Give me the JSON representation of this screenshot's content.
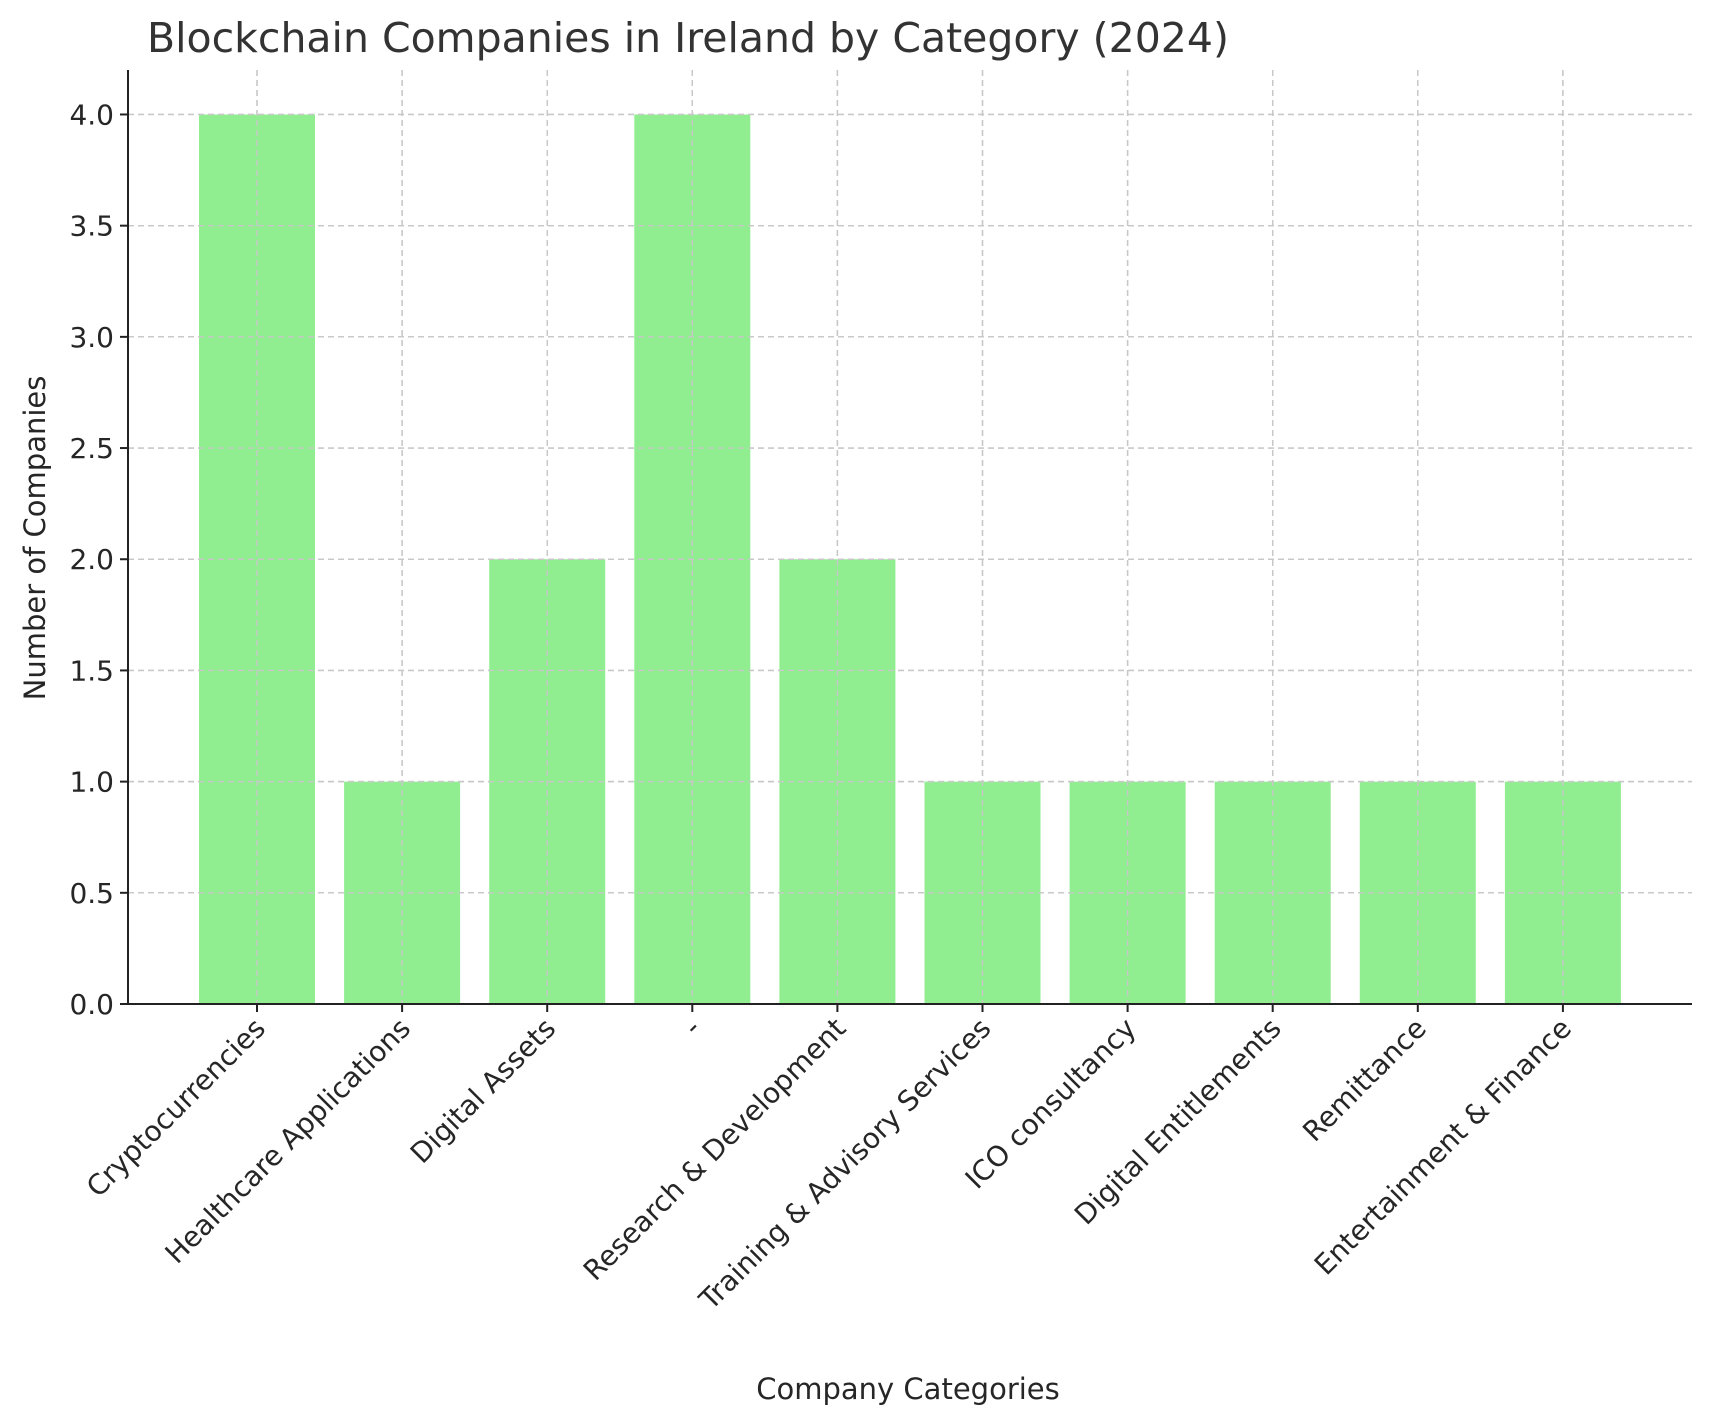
{
  "chart_data": {
    "type": "bar",
    "title": "Blockchain Companies in Ireland by Category (2024)",
    "xlabel": "Company Categories",
    "ylabel": "Number of Companies",
    "categories": [
      "Cryptocurrencies",
      "Healthcare Applications",
      "Digital Assets",
      "-",
      "Research & Development",
      "Training & Advisory Services",
      "ICO consultancy",
      "Digital Entitlements",
      "Remittance",
      "Entertainment & Finance"
    ],
    "values": [
      4,
      1,
      2,
      4,
      2,
      1,
      1,
      1,
      1,
      1
    ],
    "ylim": [
      0,
      4.2
    ],
    "yticks": [
      "0.0",
      "0.5",
      "1.0",
      "1.5",
      "2.0",
      "2.5",
      "3.0",
      "3.5",
      "4.0"
    ],
    "grid": true,
    "bar_color": "#90ee90"
  }
}
